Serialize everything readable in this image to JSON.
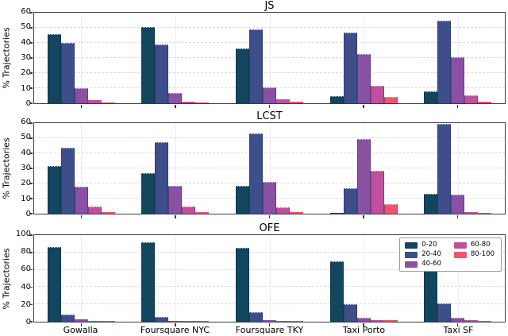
{
  "figure": {
    "ylabel": "% Trajectories",
    "categories": [
      "Gowalla",
      "Foursquare NYC",
      "Foursquare TKY",
      "Taxi Porto",
      "Taxi SF"
    ],
    "legend": {
      "position": "upper-right-of-OFE-subplot",
      "labels": [
        "0-20",
        "20-40",
        "40-60",
        "60-80",
        "80-100"
      ]
    },
    "colors": {
      "bins": [
        "#12455e",
        "#3d4e8a",
        "#8a50a3",
        "#c1509c",
        "#f2546f"
      ],
      "grid": "#dcdcdc",
      "frame": "#3b3b3b",
      "text": "#000000",
      "background": "#ffffff"
    }
  },
  "chart_data": [
    {
      "type": "bar",
      "title": "JS",
      "ylabel": "% Trajectories",
      "ylim": [
        0,
        60
      ],
      "yticks": [
        0,
        10,
        20,
        30,
        40,
        50,
        60
      ],
      "grid": true,
      "show_xticklabels": false,
      "show_legend": false,
      "categories": [
        "Gowalla",
        "Foursquare NYC",
        "Foursquare TKY",
        "Taxi Porto",
        "Taxi SF"
      ],
      "series": [
        {
          "name": "0-20",
          "values": [
            46,
            51,
            36.5,
            5,
            8
          ]
        },
        {
          "name": "20-40",
          "values": [
            40.5,
            39.5,
            49.5,
            47,
            55
          ]
        },
        {
          "name": "40-60",
          "values": [
            10,
            7,
            10.5,
            33,
            31
          ]
        },
        {
          "name": "60-80",
          "values": [
            2,
            1.2,
            2.5,
            11.5,
            5.5
          ]
        },
        {
          "name": "80-100",
          "values": [
            0.7,
            0.5,
            1,
            4,
            1
          ]
        }
      ]
    },
    {
      "type": "bar",
      "title": "LCST",
      "ylabel": "% Trajectories",
      "ylim": [
        0,
        60
      ],
      "yticks": [
        0,
        10,
        20,
        30,
        40,
        50,
        60
      ],
      "grid": true,
      "show_xticklabels": false,
      "show_legend": false,
      "categories": [
        "Gowalla",
        "Foursquare NYC",
        "Foursquare TKY",
        "Taxi Porto",
        "Taxi SF"
      ],
      "series": [
        {
          "name": "0-20",
          "values": [
            32,
            27,
            18.5,
            0.8,
            13.5
          ]
        },
        {
          "name": "20-40",
          "values": [
            44,
            48,
            53.5,
            17,
            60
          ]
        },
        {
          "name": "40-60",
          "values": [
            18,
            18.5,
            21,
            50,
            13
          ]
        },
        {
          "name": "60-80",
          "values": [
            5,
            5,
            4.5,
            28.5,
            1
          ]
        },
        {
          "name": "80-100",
          "values": [
            1,
            1.2,
            1,
            6.5,
            0.3
          ]
        }
      ]
    },
    {
      "type": "bar",
      "title": "OFE",
      "ylabel": "% Trajectories",
      "ylim": [
        0,
        100
      ],
      "yticks": [
        0,
        20,
        40,
        60,
        80,
        100
      ],
      "grid": true,
      "show_xticklabels": true,
      "show_legend": true,
      "categories": [
        "Gowalla",
        "Foursquare NYC",
        "Foursquare TKY",
        "Taxi Porto",
        "Taxi SF"
      ],
      "series": [
        {
          "name": "0-20",
          "values": [
            87,
            93,
            86,
            70,
            73
          ]
        },
        {
          "name": "20-40",
          "values": [
            8.5,
            5.5,
            11,
            20,
            21.5
          ]
        },
        {
          "name": "40-60",
          "values": [
            2.5,
            1,
            2,
            5,
            5
          ]
        },
        {
          "name": "60-80",
          "values": [
            0.5,
            0.3,
            0.4,
            1.5,
            1.5
          ]
        },
        {
          "name": "80-100",
          "values": [
            0.5,
            0.2,
            0.3,
            1.5,
            0.5
          ]
        }
      ]
    }
  ]
}
